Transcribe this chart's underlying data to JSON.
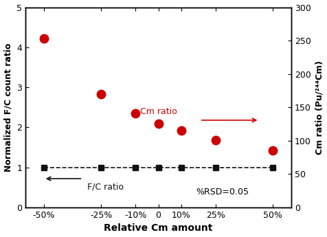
{
  "x_positions": [
    -50,
    -25,
    -10,
    0,
    10,
    25,
    50
  ],
  "x_labels": [
    "-50%",
    "-25%",
    "-10%",
    "0",
    "10%",
    "25%",
    "50%"
  ],
  "fc_ratio_values": [
    1.0,
    1.0,
    1.0,
    1.0,
    1.0,
    1.0,
    1.0
  ],
  "cm_ratio_values": [
    4.22,
    2.83,
    2.35,
    2.1,
    1.92,
    1.68,
    1.42
  ],
  "left_ylim": [
    0,
    5
  ],
  "right_ylim": [
    0,
    300
  ],
  "left_yticks": [
    0,
    1,
    2,
    3,
    4,
    5
  ],
  "right_yticks": [
    0,
    50,
    100,
    150,
    200,
    250,
    300
  ],
  "xlabel": "Relative Cm amount",
  "ylabel_left": "Normalized F/C count ratio",
  "ylabel_right": "Cm ratio (Pu/²⁴⁴Cm)",
  "fc_color": "#111111",
  "cm_color": "#cc0000",
  "fc_marker": "s",
  "cm_marker": "o",
  "fc_markersize": 6,
  "cm_markersize": 9,
  "annotation_fc": "F/C ratio",
  "annotation_cm": "Cm ratio",
  "annotation_rsd": "%RSD=0.05"
}
